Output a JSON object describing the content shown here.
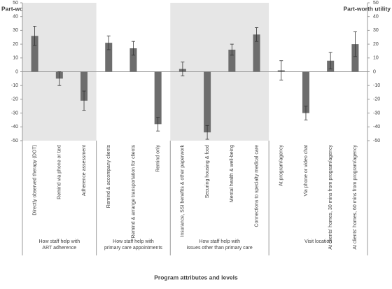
{
  "chart_data": {
    "type": "bar",
    "y_label": "Part-worth utility",
    "y2_label": "Part-worth utility",
    "x_label": "Program attributes and levels",
    "color": "#6d6d6d",
    "shade_color": "#e6e6e6",
    "ylim": [
      -50,
      50
    ],
    "yticks": [
      -50,
      -40,
      -30,
      -20,
      -10,
      0,
      10,
      20,
      30,
      40,
      50
    ],
    "y2lim": [
      -50,
      50
    ],
    "y2ticks": [
      -50,
      -40,
      -30,
      -20,
      -10,
      0,
      10,
      20,
      30,
      40,
      50
    ],
    "groups": [
      {
        "label": [
          "How staff help with",
          "ART adherence"
        ],
        "shaded": true,
        "categories": [
          "Directly observed therapy (DOT)",
          "Remind via phone or text",
          "Adherence assessment"
        ],
        "values": [
          26,
          -5,
          -21
        ],
        "errors": [
          7,
          5,
          7
        ]
      },
      {
        "label": [
          "How staff help with",
          "primary care appointments"
        ],
        "shaded": false,
        "categories": [
          "Remind & accompany clients",
          "Remind & arrange transportation for clients",
          "Remind only"
        ],
        "values": [
          21,
          17,
          -38
        ],
        "errors": [
          5,
          5,
          5
        ]
      },
      {
        "label": [
          "How staff help with",
          "issues other than primary care"
        ],
        "shaded": true,
        "categories": [
          "Insurance, SSI benefits & other paperwork",
          "Securing housing & food",
          "Mental health & well-being",
          "Connections to specialty medical care"
        ],
        "values": [
          2,
          -44,
          16,
          27
        ],
        "errors": [
          5,
          5,
          4,
          5
        ]
      },
      {
        "label": [
          "Visit location"
        ],
        "shaded": false,
        "categories": [
          "At program/agency",
          "Via phone or video chat",
          "At clients' homes, 30 mins from program/agency",
          "At clients' homes, 60 mins from program/agency"
        ],
        "values": [
          1,
          -30,
          8,
          20
        ],
        "errors": [
          7,
          5,
          6,
          9
        ]
      }
    ]
  }
}
